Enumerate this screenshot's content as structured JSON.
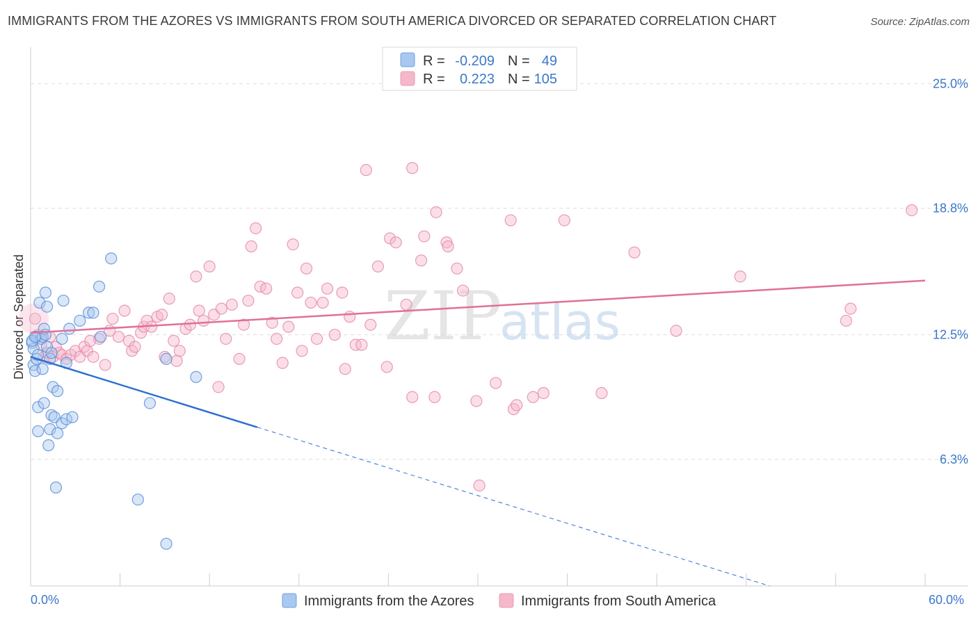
{
  "title": "IMMIGRANTS FROM THE AZORES VS IMMIGRANTS FROM SOUTH AMERICA DIVORCED OR SEPARATED CORRELATION CHART",
  "source": "Source: ZipAtlas.com",
  "watermark": {
    "zip": "ZIP",
    "atlas": "atlas"
  },
  "colors": {
    "blue_fill": "#a9c8f0",
    "blue_stroke": "#5b8fd6",
    "blue_line": "#2d6fd0",
    "pink_fill": "#f5b8cb",
    "pink_stroke": "#e88aa8",
    "pink_line": "#e07098",
    "grid": "#dddddd",
    "axis_text": "#3b78c9"
  },
  "legend": {
    "rows": [
      {
        "r_label": "R =",
        "r_value": "-0.209",
        "n_label": "N =",
        "n_value": "49"
      },
      {
        "r_label": "R =",
        "r_value": "0.223",
        "n_label": "N =",
        "n_value": "105"
      }
    ]
  },
  "chart_data": {
    "type": "scatter",
    "title": "IMMIGRANTS FROM THE AZORES VS IMMIGRANTS FROM SOUTH AMERICA DIVORCED OR SEPARATED CORRELATION CHART",
    "xlabel": "",
    "ylabel": "Divorced or Separated",
    "xlim": [
      0,
      60
    ],
    "ylim": [
      0,
      26.5
    ],
    "x_tick_labels": [
      "0.0%",
      "60.0%"
    ],
    "y_ticks": [
      6.3,
      12.5,
      18.8,
      25.0
    ],
    "y_tick_labels": [
      "6.3%",
      "12.5%",
      "18.8%",
      "25.0%"
    ],
    "grid": true,
    "series": [
      {
        "name": "Immigrants from the Azores",
        "color": "blue",
        "trend": {
          "x0": 0.0,
          "y0": 11.4,
          "x_solid_end": 15.2,
          "y_solid_end": 7.9,
          "x1": 60.0,
          "y1": -2.4
        },
        "points": [
          [
            0.1,
            12.1
          ],
          [
            0.2,
            11.8
          ],
          [
            0.2,
            11.0
          ],
          [
            0.3,
            10.7
          ],
          [
            0.4,
            12.4
          ],
          [
            0.4,
            11.3
          ],
          [
            0.5,
            8.9
          ],
          [
            0.5,
            7.7
          ],
          [
            0.6,
            14.1
          ],
          [
            0.7,
            12.3
          ],
          [
            0.8,
            12.4
          ],
          [
            0.8,
            10.8
          ],
          [
            0.9,
            12.8
          ],
          [
            0.9,
            9.1
          ],
          [
            1.0,
            14.6
          ],
          [
            1.1,
            13.9
          ],
          [
            1.1,
            11.9
          ],
          [
            1.2,
            7.0
          ],
          [
            1.3,
            7.8
          ],
          [
            1.3,
            11.3
          ],
          [
            1.4,
            11.6
          ],
          [
            1.4,
            8.5
          ],
          [
            1.5,
            9.9
          ],
          [
            1.6,
            8.4
          ],
          [
            1.7,
            4.9
          ],
          [
            1.8,
            7.6
          ],
          [
            1.8,
            9.7
          ],
          [
            2.1,
            12.3
          ],
          [
            2.1,
            8.1
          ],
          [
            2.2,
            14.2
          ],
          [
            2.4,
            8.3
          ],
          [
            2.4,
            11.1
          ],
          [
            2.6,
            12.8
          ],
          [
            2.8,
            8.4
          ],
          [
            3.3,
            13.2
          ],
          [
            3.9,
            13.6
          ],
          [
            4.2,
            13.6
          ],
          [
            4.6,
            14.9
          ],
          [
            4.7,
            12.4
          ],
          [
            5.4,
            16.3
          ],
          [
            7.2,
            4.3
          ],
          [
            8.0,
            9.1
          ],
          [
            9.1,
            11.3
          ],
          [
            9.1,
            2.1
          ],
          [
            11.1,
            10.4
          ],
          [
            0.1,
            12.2
          ],
          [
            0.3,
            12.4
          ],
          [
            0.5,
            11.5
          ],
          [
            1.0,
            12.5
          ]
        ]
      },
      {
        "name": "Immigrants from South America",
        "color": "pink",
        "trend": {
          "x0": 0.0,
          "y0": 12.6,
          "x1": 60.0,
          "y1": 15.2
        },
        "points": [
          [
            0.3,
            13.3
          ],
          [
            0.5,
            12.5
          ],
          [
            0.7,
            12.0
          ],
          [
            0.9,
            11.4
          ],
          [
            1.1,
            11.6
          ],
          [
            1.3,
            12.4
          ],
          [
            1.5,
            11.4
          ],
          [
            1.7,
            11.9
          ],
          [
            1.9,
            11.6
          ],
          [
            2.1,
            11.5
          ],
          [
            2.4,
            11.3
          ],
          [
            2.7,
            11.5
          ],
          [
            3.0,
            11.7
          ],
          [
            3.3,
            11.4
          ],
          [
            3.6,
            11.9
          ],
          [
            3.8,
            11.7
          ],
          [
            4.0,
            12.2
          ],
          [
            4.2,
            11.4
          ],
          [
            4.6,
            12.3
          ],
          [
            5.0,
            11.0
          ],
          [
            5.3,
            12.7
          ],
          [
            5.5,
            13.3
          ],
          [
            5.9,
            12.4
          ],
          [
            6.3,
            13.7
          ],
          [
            6.6,
            12.2
          ],
          [
            6.8,
            11.7
          ],
          [
            7.0,
            11.9
          ],
          [
            7.4,
            12.6
          ],
          [
            7.6,
            12.9
          ],
          [
            7.8,
            13.2
          ],
          [
            8.1,
            12.9
          ],
          [
            8.5,
            13.4
          ],
          [
            8.8,
            13.5
          ],
          [
            9.0,
            11.4
          ],
          [
            9.3,
            14.3
          ],
          [
            9.6,
            12.2
          ],
          [
            9.8,
            11.2
          ],
          [
            10.0,
            11.7
          ],
          [
            10.4,
            12.8
          ],
          [
            10.7,
            13.0
          ],
          [
            11.1,
            15.4
          ],
          [
            11.3,
            13.7
          ],
          [
            11.6,
            13.2
          ],
          [
            12.0,
            15.9
          ],
          [
            12.3,
            13.5
          ],
          [
            12.6,
            9.9
          ],
          [
            12.8,
            13.8
          ],
          [
            13.1,
            12.3
          ],
          [
            13.5,
            14.0
          ],
          [
            14.0,
            11.3
          ],
          [
            14.3,
            13.0
          ],
          [
            14.6,
            14.2
          ],
          [
            14.8,
            16.9
          ],
          [
            15.1,
            17.8
          ],
          [
            15.4,
            14.9
          ],
          [
            15.8,
            14.8
          ],
          [
            16.2,
            13.1
          ],
          [
            16.5,
            12.3
          ],
          [
            16.9,
            11.1
          ],
          [
            17.3,
            12.9
          ],
          [
            17.6,
            17.0
          ],
          [
            17.9,
            14.6
          ],
          [
            18.2,
            11.7
          ],
          [
            18.5,
            15.8
          ],
          [
            18.8,
            14.1
          ],
          [
            19.2,
            12.3
          ],
          [
            19.6,
            14.1
          ],
          [
            19.9,
            14.8
          ],
          [
            20.4,
            12.5
          ],
          [
            20.9,
            14.6
          ],
          [
            21.1,
            10.8
          ],
          [
            21.4,
            13.4
          ],
          [
            21.8,
            12.0
          ],
          [
            22.2,
            12.0
          ],
          [
            22.5,
            20.7
          ],
          [
            22.8,
            13.0
          ],
          [
            23.3,
            15.9
          ],
          [
            23.9,
            10.9
          ],
          [
            24.1,
            17.3
          ],
          [
            24.5,
            17.1
          ],
          [
            25.2,
            14.0
          ],
          [
            25.6,
            9.4
          ],
          [
            25.6,
            20.8
          ],
          [
            26.2,
            16.2
          ],
          [
            26.4,
            17.4
          ],
          [
            27.1,
            9.4
          ],
          [
            27.2,
            18.6
          ],
          [
            27.9,
            17.1
          ],
          [
            28.0,
            16.9
          ],
          [
            28.6,
            15.8
          ],
          [
            29.0,
            14.7
          ],
          [
            29.9,
            9.2
          ],
          [
            30.1,
            5.0
          ],
          [
            31.2,
            10.1
          ],
          [
            32.2,
            18.2
          ],
          [
            32.4,
            8.8
          ],
          [
            32.6,
            9.0
          ],
          [
            33.7,
            9.4
          ],
          [
            34.4,
            9.6
          ],
          [
            35.8,
            18.2
          ],
          [
            38.3,
            9.6
          ],
          [
            40.5,
            16.6
          ],
          [
            43.3,
            12.7
          ],
          [
            47.6,
            15.4
          ],
          [
            54.7,
            13.2
          ],
          [
            55.0,
            13.8
          ],
          [
            59.1,
            18.7
          ]
        ]
      }
    ],
    "bottom_legend": [
      "Immigrants from the Azores",
      "Immigrants from South America"
    ]
  }
}
